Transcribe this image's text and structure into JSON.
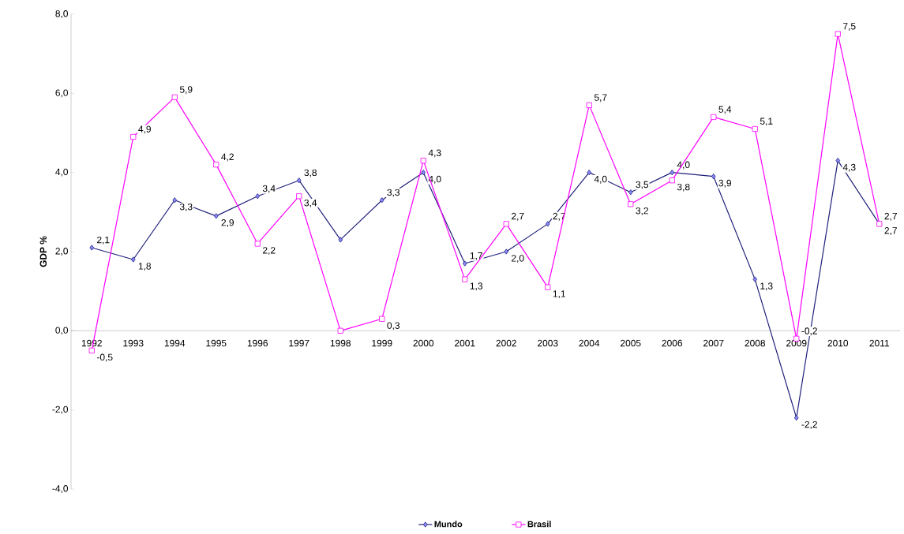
{
  "chart_data": {
    "type": "line",
    "ylabel": "GDP %",
    "categories": [
      "1992",
      "1993",
      "1994",
      "1995",
      "1996",
      "1997",
      "1998",
      "1999",
      "2000",
      "2001",
      "2002",
      "2003",
      "2004",
      "2005",
      "2006",
      "2007",
      "2008",
      "2009",
      "2010",
      "2011"
    ],
    "series": [
      {
        "name": "Mundo",
        "color": "#1f1f7a",
        "marker": "diamond",
        "values": [
          2.1,
          1.8,
          3.3,
          2.9,
          3.4,
          3.8,
          2.3,
          3.3,
          4.0,
          1.7,
          2.0,
          2.7,
          4.0,
          3.5,
          4.0,
          3.9,
          1.3,
          -2.2,
          4.3,
          2.7
        ],
        "value_labels": [
          "2,1",
          "1,8",
          "3,3",
          "2,9",
          "3,4",
          "3,8",
          null,
          "3,3",
          "4,0",
          "1,7",
          "2,0",
          "2,7",
          "4,0",
          "3,5",
          "4,0",
          "3,9",
          "1,3",
          "-2,2",
          "4,3",
          "2,7"
        ]
      },
      {
        "name": "Brasil",
        "color": "#ff00ff",
        "marker": "square",
        "values": [
          -0.5,
          4.9,
          5.9,
          4.2,
          2.2,
          3.4,
          0.0,
          0.3,
          4.3,
          1.3,
          2.7,
          1.1,
          5.7,
          3.2,
          3.8,
          5.4,
          5.1,
          -0.2,
          7.5,
          2.7
        ],
        "value_labels": [
          "-0,5",
          "4,9",
          "5,9",
          "4,2",
          "2,2",
          "3,4",
          null,
          "0,3",
          "4,3",
          "1,3",
          "2,7",
          "1,1",
          "5,7",
          "3,2",
          "3,8",
          "5,4",
          "5,1",
          "-0,2",
          "7,5",
          "2,7"
        ]
      }
    ],
    "ylim": [
      -4,
      8
    ],
    "yticks": [
      {
        "value": -4,
        "label": "-4,0"
      },
      {
        "value": -2,
        "label": "-2,0"
      },
      {
        "value": 0,
        "label": "0,0"
      },
      {
        "value": 2,
        "label": "2,0"
      },
      {
        "value": 4,
        "label": "4,0"
      },
      {
        "value": 6,
        "label": "6,0"
      },
      {
        "value": 8,
        "label": "8,0"
      }
    ],
    "legend": "bottom",
    "grid": false,
    "line_style": "solid"
  }
}
